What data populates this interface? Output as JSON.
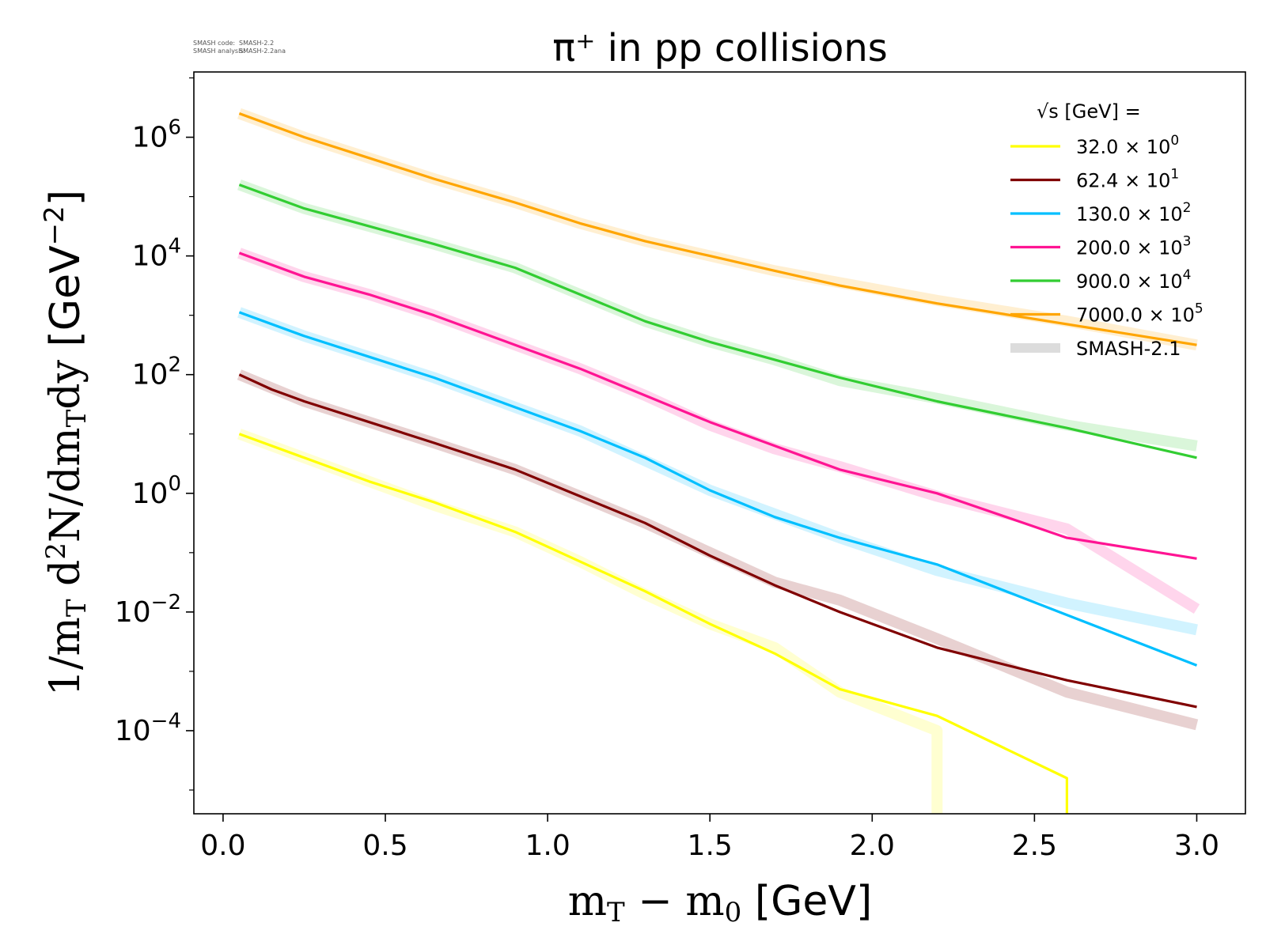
{
  "credits": {
    "code_label": "SMASH code:",
    "code_value": "SMASH-2.2",
    "analysis_label": "SMASH analysis:",
    "analysis_value": "SMASH-2.2ana"
  },
  "chart_data": {
    "type": "line",
    "title": "π⁺ in pp collisions",
    "xlabel": "m_T − m_0 [GeV]",
    "ylabel": "1/m_T d²N/dm_T dy [GeV⁻²]",
    "xlim": [
      -0.09,
      3.15
    ],
    "ylim_log10": [
      -5.4,
      7.1
    ],
    "yscale": "log",
    "grid": false,
    "x_ticks": [
      "0.0",
      "0.5",
      "1.0",
      "1.5",
      "2.0",
      "2.5",
      "3.0"
    ],
    "y_ticks": [
      {
        "base": "10",
        "exp": "6"
      },
      {
        "base": "10",
        "exp": "4"
      },
      {
        "base": "10",
        "exp": "2"
      },
      {
        "base": "10",
        "exp": "0"
      },
      {
        "base": "10",
        "exp": "−2"
      },
      {
        "base": "10",
        "exp": "−4"
      }
    ],
    "legend": {
      "placement": "top-right",
      "title": "√s  [GeV] =",
      "entries": [
        {
          "label": "32.0 × 10",
          "exp": "0",
          "color": "#ffff00",
          "kind": "line"
        },
        {
          "label": "62.4 × 10",
          "exp": "1",
          "color": "#800000",
          "kind": "line"
        },
        {
          "label": "130.0 × 10",
          "exp": "2",
          "color": "#00bfff",
          "kind": "line"
        },
        {
          "label": "200.0 × 10",
          "exp": "3",
          "color": "#ff1493",
          "kind": "line"
        },
        {
          "label": "900.0 × 10",
          "exp": "4",
          "color": "#32cd32",
          "kind": "line"
        },
        {
          "label": "7000.0 × 10",
          "exp": "5",
          "color": "#ffa500",
          "kind": "line"
        },
        {
          "label": "SMASH-2.1",
          "exp": "",
          "color": "#dcdcdc",
          "kind": "band"
        }
      ]
    },
    "series": [
      {
        "name": "32.0 × 10^0",
        "color": "#ffff00",
        "x": [
          0.05,
          0.25,
          0.45,
          0.65,
          0.9,
          1.1,
          1.3,
          1.5,
          1.7,
          1.9,
          2.2,
          2.2,
          2.6,
          2.6
        ],
        "log10y": [
          1.0,
          0.6,
          0.2,
          -0.15,
          -0.65,
          -1.15,
          -1.65,
          -2.2,
          -2.7,
          -3.3,
          -3.75,
          -3.75,
          -4.8,
          -5.4
        ],
        "ref_x": [
          0.05,
          0.25,
          0.45,
          0.65,
          0.9,
          1.1,
          1.3,
          1.5,
          1.7,
          1.9,
          2.2,
          2.2
        ],
        "ref_log10y": [
          1.0,
          0.6,
          0.2,
          -0.2,
          -0.65,
          -1.15,
          -1.7,
          -2.2,
          -2.6,
          -3.35,
          -4.0,
          -5.4
        ]
      },
      {
        "name": "62.4 × 10^1",
        "color": "#800000",
        "x": [
          0.05,
          0.15,
          0.25,
          0.45,
          0.65,
          0.9,
          1.1,
          1.3,
          1.5,
          1.7,
          1.9,
          2.2,
          2.6,
          3.0
        ],
        "log10y": [
          2.0,
          1.75,
          1.55,
          1.2,
          0.85,
          0.4,
          -0.05,
          -0.5,
          -1.05,
          -1.55,
          -2.0,
          -2.6,
          -3.15,
          -3.6
        ],
        "ref_x": [
          0.05,
          0.25,
          0.45,
          0.65,
          0.9,
          1.1,
          1.3,
          1.5,
          1.7,
          1.9,
          2.2,
          2.6,
          3.0
        ],
        "ref_log10y": [
          2.0,
          1.55,
          1.2,
          0.85,
          0.4,
          -0.05,
          -0.5,
          -1.0,
          -1.5,
          -1.8,
          -2.45,
          -3.35,
          -3.9
        ]
      },
      {
        "name": "130.0 × 10^2",
        "color": "#00bfff",
        "x": [
          0.05,
          0.25,
          0.45,
          0.65,
          0.9,
          1.1,
          1.3,
          1.5,
          1.7,
          1.9,
          2.2,
          2.6,
          3.0
        ],
        "log10y": [
          3.05,
          2.65,
          2.3,
          1.95,
          1.45,
          1.05,
          0.6,
          0.05,
          -0.4,
          -0.75,
          -1.2,
          -2.05,
          -2.9
        ],
        "ref_x": [
          0.05,
          0.25,
          0.45,
          0.65,
          0.9,
          1.1,
          1.3,
          1.5,
          1.7,
          1.9,
          2.2,
          2.6,
          3.0
        ],
        "ref_log10y": [
          3.05,
          2.65,
          2.3,
          1.95,
          1.45,
          1.05,
          0.55,
          0.05,
          -0.35,
          -0.75,
          -1.3,
          -1.85,
          -2.3
        ]
      },
      {
        "name": "200.0 × 10^3",
        "color": "#ff1493",
        "x": [
          0.05,
          0.25,
          0.45,
          0.65,
          0.9,
          1.1,
          1.3,
          1.5,
          1.7,
          1.9,
          2.2,
          2.6,
          3.0
        ],
        "log10y": [
          4.05,
          3.65,
          3.35,
          3.0,
          2.5,
          2.1,
          1.65,
          1.2,
          0.8,
          0.4,
          0.0,
          -0.75,
          -1.1
        ],
        "ref_x": [
          0.05,
          0.25,
          0.45,
          0.65,
          0.9,
          1.1,
          1.3,
          1.5,
          1.7,
          1.9,
          2.2,
          2.6,
          3.0
        ],
        "ref_log10y": [
          4.05,
          3.65,
          3.35,
          3.0,
          2.5,
          2.1,
          1.65,
          1.15,
          0.75,
          0.45,
          -0.05,
          -0.6,
          -1.95
        ]
      },
      {
        "name": "900.0 × 10^4",
        "color": "#32cd32",
        "x": [
          0.05,
          0.15,
          0.25,
          0.45,
          0.65,
          0.9,
          1.1,
          1.3,
          1.5,
          1.7,
          1.9,
          2.2,
          2.6,
          3.0
        ],
        "log10y": [
          5.2,
          5.0,
          4.8,
          4.5,
          4.2,
          3.8,
          3.35,
          2.9,
          2.55,
          2.25,
          1.95,
          1.55,
          1.1,
          0.6
        ],
        "ref_x": [
          0.05,
          0.25,
          0.45,
          0.65,
          0.9,
          1.1,
          1.3,
          1.5,
          1.7,
          1.9,
          2.2,
          2.6,
          3.0
        ],
        "ref_log10y": [
          5.2,
          4.8,
          4.5,
          4.2,
          3.8,
          3.35,
          2.9,
          2.55,
          2.25,
          1.9,
          1.6,
          1.15,
          0.8
        ]
      },
      {
        "name": "7000.0 × 10^5",
        "color": "#ffa500",
        "x": [
          0.05,
          0.15,
          0.25,
          0.45,
          0.65,
          0.9,
          1.1,
          1.3,
          1.5,
          1.7,
          1.9,
          2.2,
          2.6,
          3.0
        ],
        "log10y": [
          6.4,
          6.2,
          6.0,
          5.65,
          5.3,
          4.9,
          4.55,
          4.25,
          4.0,
          3.75,
          3.5,
          3.2,
          2.85,
          2.5
        ],
        "ref_x": [
          0.05,
          0.25,
          0.45,
          0.65,
          0.9,
          1.1,
          1.3,
          1.5,
          1.7,
          1.9,
          2.2,
          2.6,
          3.0
        ],
        "ref_log10y": [
          6.4,
          6.0,
          5.65,
          5.3,
          4.9,
          4.55,
          4.25,
          4.0,
          3.75,
          3.55,
          3.25,
          2.9,
          2.5
        ]
      }
    ]
  }
}
